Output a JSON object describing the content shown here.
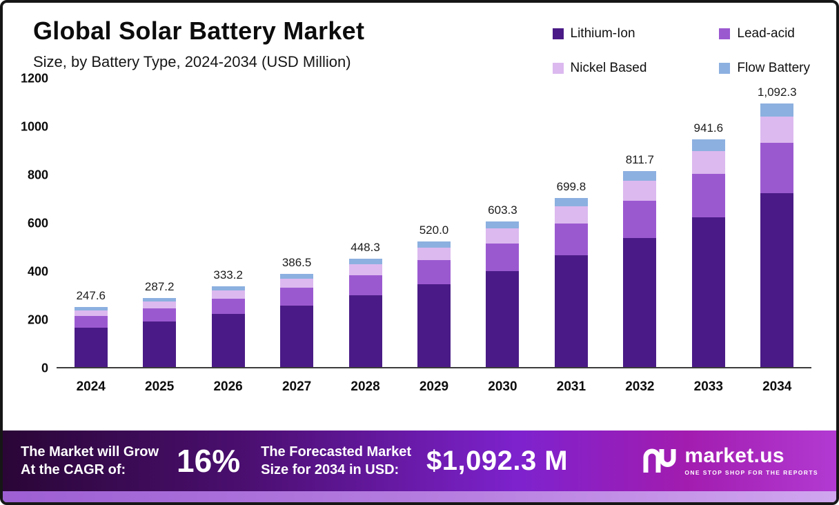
{
  "title": "Global Solar Battery Market",
  "subtitle": "Size, by Battery Type, 2024-2034 (USD Million)",
  "legend": [
    {
      "label": "Lithium-Ion",
      "color": "#4a1b86"
    },
    {
      "label": "Lead-acid",
      "color": "#9b59d0"
    },
    {
      "label": "Nickel Based",
      "color": "#dcb9ef"
    },
    {
      "label": "Flow Battery",
      "color": "#8cb0e0"
    }
  ],
  "chart_data": {
    "type": "bar",
    "stacked": true,
    "title": "Global Solar Battery Market Size, by Battery Type, 2024-2034 (USD Million)",
    "unit": "USD Million",
    "categories": [
      "2024",
      "2025",
      "2026",
      "2027",
      "2028",
      "2029",
      "2030",
      "2031",
      "2032",
      "2033",
      "2034"
    ],
    "series": [
      {
        "name": "Lithium-Ion",
        "color": "#4a1b86",
        "values": [
          163.4,
          189.5,
          219.9,
          255.1,
          295.9,
          343.2,
          398.2,
          461.8,
          535.7,
          621.4,
          721.0
        ]
      },
      {
        "name": "Lead-acid",
        "color": "#9b59d0",
        "values": [
          47.0,
          54.6,
          63.3,
          73.4,
          85.2,
          98.8,
          114.6,
          133.0,
          154.2,
          178.9,
          207.5
        ]
      },
      {
        "name": "Nickel Based",
        "color": "#dcb9ef",
        "values": [
          24.8,
          28.7,
          33.3,
          38.7,
          44.8,
          52.0,
          60.3,
          70.0,
          81.2,
          94.2,
          109.2
        ]
      },
      {
        "name": "Flow Battery",
        "color": "#8cb0e0",
        "values": [
          12.4,
          14.4,
          16.7,
          19.3,
          22.4,
          26.0,
          30.2,
          35.0,
          40.6,
          47.1,
          54.6
        ]
      }
    ],
    "totals": [
      247.6,
      287.2,
      333.2,
      386.5,
      448.3,
      520.0,
      603.3,
      699.8,
      811.7,
      941.6,
      1092.3
    ],
    "total_labels": [
      "247.6",
      "287.2",
      "333.2",
      "386.5",
      "448.3",
      "520.0",
      "603.3",
      "699.8",
      "811.7",
      "941.6",
      "1,092.3"
    ],
    "ylim": [
      0,
      1200
    ],
    "yticks": [
      0,
      200,
      400,
      600,
      800,
      1000,
      1200
    ],
    "grid": false,
    "legend_position": "top-right"
  },
  "banner": {
    "left_line1": "The Market will Grow",
    "left_line2": "At the CAGR of:",
    "cagr": "16%",
    "mid_line1": "The Forecasted Market",
    "mid_line2": "Size for 2034 in USD:",
    "value": "$1,092.3 M",
    "brand": "market.us",
    "tagline": "ONE STOP SHOP FOR THE REPORTS"
  }
}
